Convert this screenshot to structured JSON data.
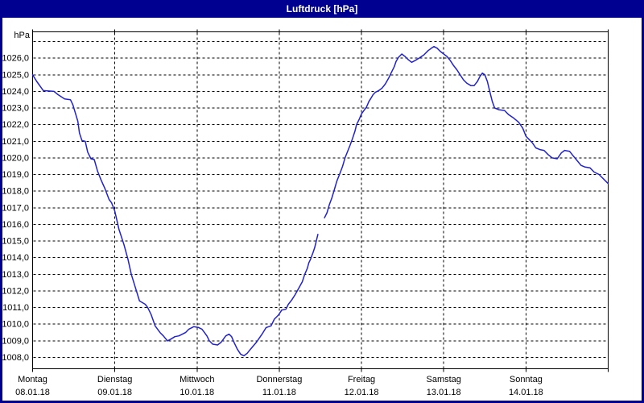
{
  "window": {
    "title": "Luftdruck [hPa]"
  },
  "colors": {
    "titlebar": "#000090",
    "window_border": "#000090",
    "background": "#ffffff",
    "grid": "#000000",
    "text": "#000000",
    "line": "#2222cc"
  },
  "chart_data": {
    "type": "line",
    "title": "Luftdruck [hPa]",
    "y_unit_label": "hPa",
    "grid": "dashed",
    "legend_position": "none",
    "x_range_days": [
      0,
      7
    ],
    "y_gridlines": {
      "min": 1008,
      "max": 1027,
      "step": 1
    },
    "y_tick_labels": [
      "1008,0",
      "1009,0",
      "1010,0",
      "1011,0",
      "1012,0",
      "1013,0",
      "1014,0",
      "1015,0",
      "1016,0",
      "1017,0",
      "1018,0",
      "1019,0",
      "1020,0",
      "1021,0",
      "1022,0",
      "1023,0",
      "1024,0",
      "1025,0",
      "1026,0"
    ],
    "x_ticks": [
      {
        "day": "Montag",
        "date": "08.01.18"
      },
      {
        "day": "Dienstag",
        "date": "09.01.18"
      },
      {
        "day": "Mittwoch",
        "date": "10.01.18"
      },
      {
        "day": "Donnerstag",
        "date": "11.01.18"
      },
      {
        "day": "Freitag",
        "date": "12.01.18"
      },
      {
        "day": "Samstag",
        "date": "13.01.18"
      },
      {
        "day": "Sonntag",
        "date": "14.01.18"
      }
    ],
    "series": [
      {
        "name": "Luftdruck",
        "color": "#2222cc",
        "segments": [
          [
            [
              0.0,
              1025.0
            ],
            [
              0.05,
              1024.6
            ],
            [
              0.13,
              1024.05
            ],
            [
              0.26,
              1024.0
            ],
            [
              0.31,
              1023.8
            ],
            [
              0.39,
              1023.55
            ],
            [
              0.46,
              1023.5
            ],
            [
              0.49,
              1023.2
            ],
            [
              0.52,
              1022.7
            ],
            [
              0.55,
              1022.2
            ],
            [
              0.57,
              1021.5
            ],
            [
              0.6,
              1021.05
            ],
            [
              0.64,
              1021.0
            ],
            [
              0.67,
              1020.35
            ],
            [
              0.71,
              1019.95
            ],
            [
              0.75,
              1019.9
            ],
            [
              0.79,
              1019.2
            ],
            [
              0.83,
              1018.7
            ],
            [
              0.88,
              1018.15
            ],
            [
              0.93,
              1017.5
            ],
            [
              0.96,
              1017.3
            ],
            [
              1.0,
              1016.8
            ],
            [
              1.05,
              1015.7
            ],
            [
              1.11,
              1014.8
            ],
            [
              1.16,
              1013.9
            ],
            [
              1.2,
              1013.0
            ],
            [
              1.25,
              1012.2
            ],
            [
              1.3,
              1011.4
            ],
            [
              1.37,
              1011.2
            ],
            [
              1.4,
              1011.0
            ],
            [
              1.44,
              1010.6
            ],
            [
              1.49,
              1009.9
            ],
            [
              1.55,
              1009.5
            ],
            [
              1.59,
              1009.3
            ],
            [
              1.64,
              1009.0
            ],
            [
              1.68,
              1009.1
            ],
            [
              1.73,
              1009.25
            ],
            [
              1.78,
              1009.3
            ],
            [
              1.86,
              1009.5
            ],
            [
              1.9,
              1009.7
            ],
            [
              1.96,
              1009.85
            ],
            [
              2.02,
              1009.8
            ],
            [
              2.06,
              1009.7
            ],
            [
              2.09,
              1009.5
            ],
            [
              2.12,
              1009.3
            ],
            [
              2.15,
              1009.0
            ],
            [
              2.19,
              1008.8
            ],
            [
              2.25,
              1008.75
            ],
            [
              2.29,
              1008.9
            ],
            [
              2.32,
              1009.1
            ],
            [
              2.35,
              1009.3
            ],
            [
              2.39,
              1009.4
            ],
            [
              2.42,
              1009.25
            ],
            [
              2.45,
              1008.9
            ],
            [
              2.49,
              1008.5
            ],
            [
              2.53,
              1008.2
            ],
            [
              2.57,
              1008.1
            ],
            [
              2.61,
              1008.25
            ],
            [
              2.65,
              1008.5
            ],
            [
              2.72,
              1008.9
            ],
            [
              2.79,
              1009.4
            ],
            [
              2.84,
              1009.8
            ],
            [
              2.9,
              1009.9
            ],
            [
              2.94,
              1010.3
            ],
            [
              2.99,
              1010.55
            ],
            [
              3.03,
              1010.85
            ],
            [
              3.08,
              1010.9
            ],
            [
              3.11,
              1011.2
            ],
            [
              3.15,
              1011.45
            ],
            [
              3.19,
              1011.75
            ],
            [
              3.23,
              1012.1
            ],
            [
              3.28,
              1012.55
            ],
            [
              3.31,
              1013.0
            ],
            [
              3.34,
              1013.35
            ],
            [
              3.36,
              1013.7
            ],
            [
              3.38,
              1013.9
            ],
            [
              3.41,
              1014.3
            ],
            [
              3.43,
              1014.6
            ],
            [
              3.45,
              1015.0
            ],
            [
              3.47,
              1015.4
            ]
          ],
          [
            [
              3.55,
              1016.4
            ],
            [
              3.58,
              1016.7
            ],
            [
              3.61,
              1017.2
            ],
            [
              3.64,
              1017.6
            ],
            [
              3.67,
              1018.1
            ],
            [
              3.7,
              1018.6
            ],
            [
              3.74,
              1019.1
            ],
            [
              3.77,
              1019.5
            ],
            [
              3.8,
              1020.0
            ],
            [
              3.84,
              1020.5
            ],
            [
              3.86,
              1020.75
            ],
            [
              3.89,
              1021.15
            ],
            [
              3.92,
              1021.6
            ],
            [
              3.94,
              1022.0
            ],
            [
              3.97,
              1022.3
            ],
            [
              4.0,
              1022.65
            ],
            [
              4.03,
              1022.85
            ],
            [
              4.06,
              1023.05
            ],
            [
              4.09,
              1023.4
            ],
            [
              4.11,
              1023.55
            ],
            [
              4.14,
              1023.8
            ],
            [
              4.17,
              1023.95
            ],
            [
              4.21,
              1024.05
            ],
            [
              4.25,
              1024.2
            ],
            [
              4.29,
              1024.45
            ],
            [
              4.33,
              1024.8
            ],
            [
              4.36,
              1025.1
            ],
            [
              4.4,
              1025.5
            ],
            [
              4.42,
              1025.8
            ],
            [
              4.45,
              1026.05
            ],
            [
              4.49,
              1026.25
            ],
            [
              4.53,
              1026.1
            ],
            [
              4.57,
              1025.9
            ],
            [
              4.61,
              1025.75
            ],
            [
              4.65,
              1025.85
            ],
            [
              4.7,
              1026.0
            ],
            [
              4.76,
              1026.2
            ],
            [
              4.81,
              1026.45
            ],
            [
              4.85,
              1026.6
            ],
            [
              4.88,
              1026.7
            ],
            [
              4.92,
              1026.6
            ],
            [
              4.96,
              1026.4
            ],
            [
              5.0,
              1026.25
            ],
            [
              5.04,
              1026.1
            ],
            [
              5.08,
              1025.85
            ],
            [
              5.12,
              1025.55
            ],
            [
              5.16,
              1025.3
            ],
            [
              5.2,
              1025.0
            ],
            [
              5.24,
              1024.7
            ],
            [
              5.28,
              1024.5
            ],
            [
              5.33,
              1024.35
            ],
            [
              5.37,
              1024.35
            ],
            [
              5.41,
              1024.6
            ],
            [
              5.44,
              1024.9
            ],
            [
              5.47,
              1025.1
            ],
            [
              5.5,
              1025.0
            ],
            [
              5.53,
              1024.6
            ],
            [
              5.56,
              1024.0
            ],
            [
              5.59,
              1023.4
            ],
            [
              5.62,
              1023.0
            ],
            [
              5.67,
              1022.9
            ],
            [
              5.74,
              1022.85
            ],
            [
              5.79,
              1022.6
            ],
            [
              5.85,
              1022.4
            ],
            [
              5.91,
              1022.15
            ],
            [
              5.96,
              1021.8
            ],
            [
              6.0,
              1021.3
            ],
            [
              6.04,
              1021.1
            ],
            [
              6.08,
              1020.9
            ],
            [
              6.12,
              1020.6
            ],
            [
              6.17,
              1020.5
            ],
            [
              6.22,
              1020.45
            ],
            [
              6.27,
              1020.2
            ],
            [
              6.32,
              1020.0
            ],
            [
              6.38,
              1019.95
            ],
            [
              6.43,
              1020.3
            ],
            [
              6.47,
              1020.45
            ],
            [
              6.53,
              1020.4
            ],
            [
              6.57,
              1020.15
            ],
            [
              6.62,
              1019.85
            ],
            [
              6.67,
              1019.55
            ],
            [
              6.72,
              1019.45
            ],
            [
              6.78,
              1019.4
            ],
            [
              6.83,
              1019.15
            ],
            [
              6.89,
              1019.0
            ],
            [
              6.95,
              1018.7
            ],
            [
              7.0,
              1018.45
            ]
          ]
        ]
      }
    ]
  }
}
